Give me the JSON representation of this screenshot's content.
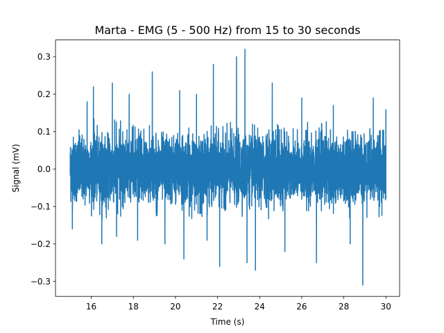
{
  "chart_data": {
    "type": "line",
    "title": "Marta - EMG (5 - 500 Hz) from 15 to 30 seconds",
    "xlabel": "Time (s)",
    "ylabel": "Signal (mV)",
    "xlim": [
      14.3,
      30.65
    ],
    "ylim": [
      -0.34,
      0.345
    ],
    "xticks": [
      16,
      18,
      20,
      22,
      24,
      26,
      28,
      30
    ],
    "xtick_labels": [
      "16",
      "18",
      "20",
      "22",
      "24",
      "26",
      "28",
      "30"
    ],
    "yticks": [
      -0.3,
      -0.2,
      -0.1,
      0.0,
      0.1,
      0.2,
      0.3
    ],
    "ytick_labels": [
      "−0.3",
      "−0.2",
      "−0.1",
      "0.0",
      "0.1",
      "0.2",
      "0.3"
    ],
    "grid": false,
    "legend": "none",
    "series": [
      {
        "color": "#1f77b4",
        "x_range": [
          15.0,
          30.0
        ],
        "typical_amplitude": 0.1,
        "peaks": [
          {
            "x": 15.1,
            "y": -0.16
          },
          {
            "x": 15.8,
            "y": 0.18
          },
          {
            "x": 16.1,
            "y": 0.22
          },
          {
            "x": 16.5,
            "y": -0.2
          },
          {
            "x": 17.0,
            "y": 0.23
          },
          {
            "x": 17.2,
            "y": -0.18
          },
          {
            "x": 17.8,
            "y": 0.2
          },
          {
            "x": 18.2,
            "y": -0.19
          },
          {
            "x": 18.9,
            "y": 0.26
          },
          {
            "x": 19.5,
            "y": -0.2
          },
          {
            "x": 20.2,
            "y": 0.21
          },
          {
            "x": 20.4,
            "y": -0.24
          },
          {
            "x": 21.0,
            "y": 0.2
          },
          {
            "x": 21.5,
            "y": -0.19
          },
          {
            "x": 21.8,
            "y": 0.28
          },
          {
            "x": 22.1,
            "y": -0.26
          },
          {
            "x": 22.9,
            "y": 0.3
          },
          {
            "x": 23.3,
            "y": 0.32
          },
          {
            "x": 23.4,
            "y": -0.25
          },
          {
            "x": 23.8,
            "y": -0.27
          },
          {
            "x": 24.6,
            "y": 0.23
          },
          {
            "x": 25.2,
            "y": -0.22
          },
          {
            "x": 26.0,
            "y": 0.19
          },
          {
            "x": 26.7,
            "y": -0.25
          },
          {
            "x": 27.5,
            "y": 0.17
          },
          {
            "x": 28.3,
            "y": -0.2
          },
          {
            "x": 28.9,
            "y": -0.31
          },
          {
            "x": 29.4,
            "y": 0.19
          },
          {
            "x": 30.0,
            "y": 0.16
          }
        ]
      }
    ]
  }
}
